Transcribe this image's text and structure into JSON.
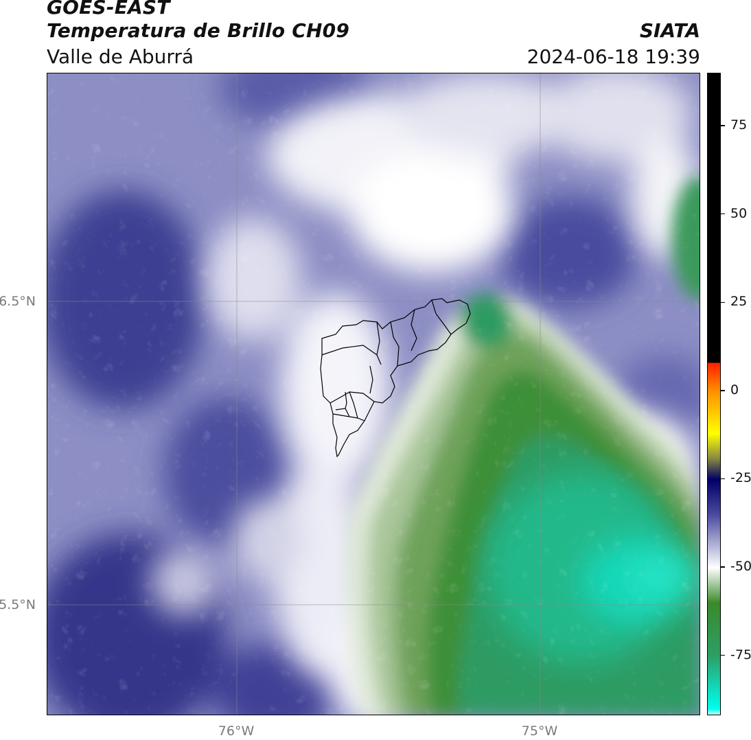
{
  "header": {
    "title_line1": "GOES-EAST",
    "title_line2": "Temperatura de Brillo CH09",
    "subtitle": "Valle de Aburrá",
    "organization": "SIATA",
    "timestamp": "2024-06-18 19:39"
  },
  "map": {
    "lat_labels": [
      "6.5°N",
      "5.5°N"
    ],
    "lon_labels": [
      "76°W",
      "75°W"
    ],
    "gridlines": true,
    "colors": {
      "cold_cloud": "#2f9b63",
      "coldest": "#18d8b8",
      "warm_sky": "#5052a0",
      "mid": "#c8c8e0",
      "white": "#ffffff"
    }
  },
  "colorbar": {
    "ticks": [
      "75",
      "50",
      "25",
      "0",
      "-25",
      "-50",
      "-75"
    ],
    "stops": [
      {
        "value": 90,
        "color": "#000000"
      },
      {
        "value": 8,
        "color": "#000000"
      },
      {
        "value": 8,
        "color": "#ff2000"
      },
      {
        "value": 0,
        "color": "#ff9000"
      },
      {
        "value": -12,
        "color": "#ffff00"
      },
      {
        "value": -19,
        "color": "#8a8a40"
      },
      {
        "value": -25,
        "color": "#000066"
      },
      {
        "value": -35,
        "color": "#4a4aa0"
      },
      {
        "value": -50,
        "color": "#ffffff"
      },
      {
        "value": -60,
        "color": "#3a8a2a"
      },
      {
        "value": -75,
        "color": "#2e9e66"
      },
      {
        "value": -90,
        "color": "#00ffee"
      },
      {
        "value": -92,
        "color": "#ffffff"
      }
    ],
    "range": [
      -92,
      90
    ]
  }
}
